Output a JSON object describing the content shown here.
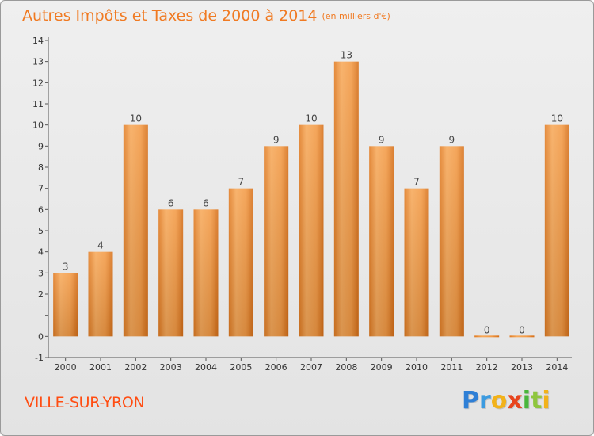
{
  "header": {
    "title": "Autres Impôts et Taxes de 2000 à 2014",
    "unit": "(en milliers d'€)"
  },
  "footer": {
    "place": "VILLE-SUR-YRON",
    "brand_letters": [
      "P",
      "r",
      "o",
      "x",
      "i",
      "t",
      "i"
    ]
  },
  "colors": {
    "title": "#f07a22",
    "place": "#ff4d12",
    "bar_light": "#f7a95a",
    "bar_dark": "#d8701a",
    "axis": "#555555"
  },
  "chart_data": {
    "type": "bar",
    "title": "Autres Impôts et Taxes de 2000 à 2014",
    "unit": "(en milliers d'€)",
    "categories": [
      "2000",
      "2001",
      "2002",
      "2003",
      "2004",
      "2005",
      "2006",
      "2007",
      "2008",
      "2009",
      "2010",
      "2011",
      "2012",
      "2013",
      "2014"
    ],
    "values": [
      3,
      4,
      10,
      6,
      6,
      7,
      9,
      10,
      13,
      9,
      7,
      9,
      0,
      0,
      10
    ],
    "ylim": [
      -1,
      14
    ],
    "yticks": [
      "-1",
      "0",
      "",
      "2",
      "3",
      "4",
      "5",
      "6",
      "7",
      "8",
      "9",
      "10",
      "11",
      "12",
      "13",
      "14"
    ],
    "grid": false,
    "data_labels": true
  }
}
